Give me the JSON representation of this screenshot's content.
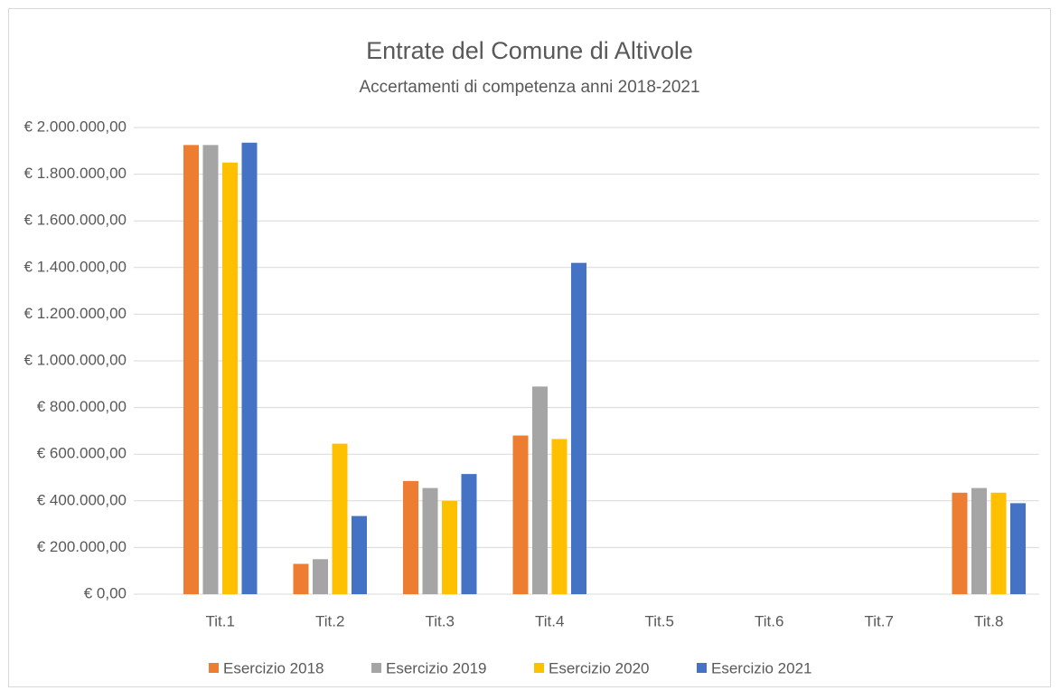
{
  "chart_data": {
    "type": "bar",
    "title": "Entrate del Comune di Altivole",
    "subtitle": "Accertamenti di competenza anni 2018-2021",
    "categories": [
      "Tit.1",
      "Tit.2",
      "Tit.3",
      "Tit.4",
      "Tit.5",
      "Tit.6",
      "Tit.7",
      "Tit.8"
    ],
    "series": [
      {
        "name": "Esercizio 2018",
        "color": "#ed7d31",
        "values": [
          1925000,
          130000,
          485000,
          680000,
          0,
          0,
          0,
          435000
        ]
      },
      {
        "name": "Esercizio 2019",
        "color": "#a5a5a5",
        "values": [
          1925000,
          150000,
          455000,
          890000,
          0,
          0,
          0,
          455000
        ]
      },
      {
        "name": "Esercizio 2020",
        "color": "#ffc000",
        "values": [
          1850000,
          645000,
          400000,
          665000,
          0,
          0,
          0,
          435000
        ]
      },
      {
        "name": "Esercizio 2021",
        "color": "#4472c4",
        "values": [
          1935000,
          335000,
          515000,
          1420000,
          0,
          0,
          0,
          390000
        ]
      }
    ],
    "ylim": [
      0,
      2000000
    ],
    "yticks": [
      {
        "value": 0,
        "label": "€ 0,00"
      },
      {
        "value": 200000,
        "label": "€ 200.000,00"
      },
      {
        "value": 400000,
        "label": "€ 400.000,00"
      },
      {
        "value": 600000,
        "label": "€ 600.000,00"
      },
      {
        "value": 800000,
        "label": "€ 800.000,00"
      },
      {
        "value": 1000000,
        "label": "€ 1.000.000,00"
      },
      {
        "value": 1200000,
        "label": "€ 1.200.000,00"
      },
      {
        "value": 1400000,
        "label": "€ 1.400.000,00"
      },
      {
        "value": 1600000,
        "label": "€ 1.600.000,00"
      },
      {
        "value": 1800000,
        "label": "€ 1.800.000,00"
      },
      {
        "value": 2000000,
        "label": "€ 2.000.000,00"
      }
    ],
    "grid": true,
    "legend": "bottom"
  }
}
